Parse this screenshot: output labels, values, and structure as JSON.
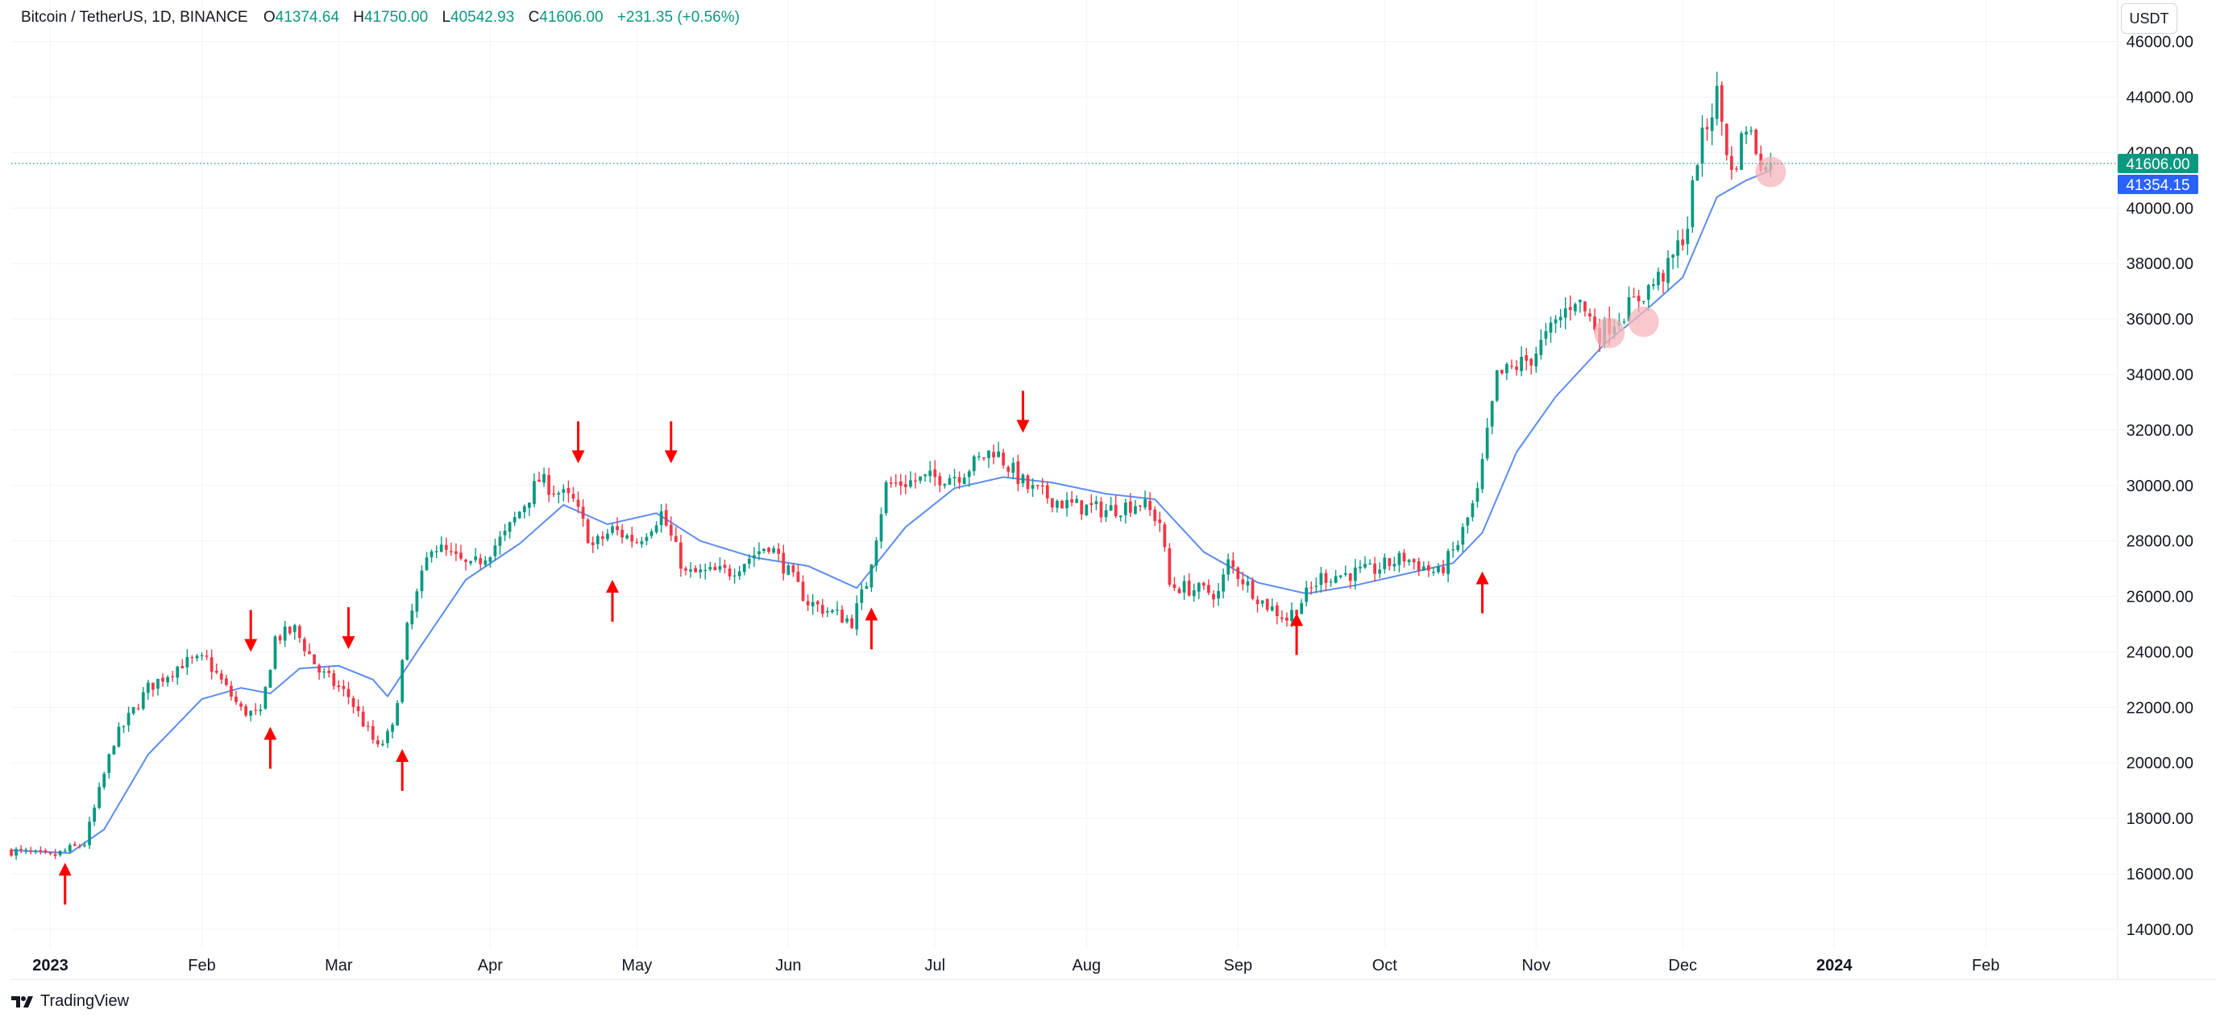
{
  "header": {
    "symbol": "Bitcoin / TetherUS, 1D, BINANCE",
    "o_label": "O",
    "o_value": "41374.64",
    "h_label": "H",
    "h_value": "41750.00",
    "l_label": "L",
    "l_value": "40542.93",
    "c_label": "C",
    "c_value": "41606.00",
    "change": "+231.35 (+0.56%)"
  },
  "currency_button": "USDT",
  "branding": "TradingView",
  "colors": {
    "up": "#089981",
    "down": "#f23645",
    "ma": "#5b8def",
    "last_price_bg": "#089981",
    "ma_label_bg": "#2962ff",
    "arrow": "#ff0000",
    "highlight": "#f7b6bb",
    "grid": "#f0f3fa",
    "axis_text": "#131722"
  },
  "chart_data": {
    "type": "candlestick",
    "title": "Bitcoin / TetherUS, 1D, BINANCE",
    "x_range": [
      "2022-12-24",
      "2024-02-28"
    ],
    "ylim": [
      13300,
      47500
    ],
    "y_ticks": [
      14000,
      16000,
      18000,
      20000,
      22000,
      24000,
      26000,
      28000,
      30000,
      32000,
      34000,
      36000,
      38000,
      40000,
      42000,
      44000,
      46000
    ],
    "y_tick_labels": [
      "14000.00",
      "16000.00",
      "18000.00",
      "20000.00",
      "22000.00",
      "24000.00",
      "26000.00",
      "28000.00",
      "30000.00",
      "32000.00",
      "34000.00",
      "36000.00",
      "38000.00",
      "40000.00",
      "42000.00",
      "44000.00",
      "46000.00"
    ],
    "x_ticks": [
      {
        "label": "2023",
        "date": "2023-01-01",
        "bold": true
      },
      {
        "label": "Feb",
        "date": "2023-02-01"
      },
      {
        "label": "Mar",
        "date": "2023-03-01"
      },
      {
        "label": "Apr",
        "date": "2023-04-01"
      },
      {
        "label": "May",
        "date": "2023-05-01"
      },
      {
        "label": "Jun",
        "date": "2023-06-01"
      },
      {
        "label": "Jul",
        "date": "2023-07-01"
      },
      {
        "label": "Aug",
        "date": "2023-08-01"
      },
      {
        "label": "Sep",
        "date": "2023-09-01"
      },
      {
        "label": "Oct",
        "date": "2023-10-01"
      },
      {
        "label": "Nov",
        "date": "2023-11-01"
      },
      {
        "label": "Dec",
        "date": "2023-12-01"
      },
      {
        "label": "2024",
        "date": "2024-01-01",
        "bold": true
      },
      {
        "label": "Feb",
        "date": "2024-02-01"
      }
    ],
    "grid": true,
    "last_price": {
      "value": 41606.0,
      "label": "41606.00"
    },
    "ma_value": {
      "value": 41354.15,
      "label": "41354.15"
    },
    "price_path": [
      {
        "date": "2022-12-24",
        "close": 16840
      },
      {
        "date": "2023-01-01",
        "close": 16600
      },
      {
        "date": "2023-01-08",
        "close": 17100
      },
      {
        "date": "2023-01-14",
        "close": 20800
      },
      {
        "date": "2023-01-21",
        "close": 22700
      },
      {
        "date": "2023-01-28",
        "close": 23600
      },
      {
        "date": "2023-02-02",
        "close": 23700
      },
      {
        "date": "2023-02-09",
        "close": 21900
      },
      {
        "date": "2023-02-13",
        "close": 21700
      },
      {
        "date": "2023-02-16",
        "close": 24500
      },
      {
        "date": "2023-02-20",
        "close": 24800
      },
      {
        "date": "2023-02-25",
        "close": 23300
      },
      {
        "date": "2023-03-03",
        "close": 22400
      },
      {
        "date": "2023-03-09",
        "close": 20500
      },
      {
        "date": "2023-03-12",
        "close": 21200
      },
      {
        "date": "2023-03-15",
        "close": 24800
      },
      {
        "date": "2023-03-20",
        "close": 27900
      },
      {
        "date": "2023-03-28",
        "close": 27000
      },
      {
        "date": "2023-04-04",
        "close": 28200
      },
      {
        "date": "2023-04-11",
        "close": 30200
      },
      {
        "date": "2023-04-18",
        "close": 29400
      },
      {
        "date": "2023-04-22",
        "close": 27800
      },
      {
        "date": "2023-04-26",
        "close": 28400
      },
      {
        "date": "2023-05-01",
        "close": 28000
      },
      {
        "date": "2023-05-06",
        "close": 29000
      },
      {
        "date": "2023-05-11",
        "close": 26800
      },
      {
        "date": "2023-05-20",
        "close": 26900
      },
      {
        "date": "2023-05-28",
        "close": 27900
      },
      {
        "date": "2023-06-05",
        "close": 25800
      },
      {
        "date": "2023-06-14",
        "close": 25100
      },
      {
        "date": "2023-06-17",
        "close": 26500
      },
      {
        "date": "2023-06-21",
        "close": 30000
      },
      {
        "date": "2023-06-28",
        "close": 30200
      },
      {
        "date": "2023-07-06",
        "close": 30400
      },
      {
        "date": "2023-07-13",
        "close": 31300
      },
      {
        "date": "2023-07-20",
        "close": 29900
      },
      {
        "date": "2023-07-28",
        "close": 29300
      },
      {
        "date": "2023-08-05",
        "close": 29100
      },
      {
        "date": "2023-08-12",
        "close": 29400
      },
      {
        "date": "2023-08-16",
        "close": 28700
      },
      {
        "date": "2023-08-18",
        "close": 26400
      },
      {
        "date": "2023-08-28",
        "close": 26100
      },
      {
        "date": "2023-08-30",
        "close": 27200
      },
      {
        "date": "2023-09-06",
        "close": 25800
      },
      {
        "date": "2023-09-11",
        "close": 25200
      },
      {
        "date": "2023-09-18",
        "close": 26700
      },
      {
        "date": "2023-09-28",
        "close": 26900
      },
      {
        "date": "2023-10-05",
        "close": 27400
      },
      {
        "date": "2023-10-12",
        "close": 26800
      },
      {
        "date": "2023-10-16",
        "close": 27900
      },
      {
        "date": "2023-10-20",
        "close": 29700
      },
      {
        "date": "2023-10-24",
        "close": 33900
      },
      {
        "date": "2023-10-31",
        "close": 34600
      },
      {
        "date": "2023-11-09",
        "close": 36800
      },
      {
        "date": "2023-11-14",
        "close": 35500
      },
      {
        "date": "2023-11-21",
        "close": 36600
      },
      {
        "date": "2023-11-28",
        "close": 37800
      },
      {
        "date": "2023-12-02",
        "close": 39400
      },
      {
        "date": "2023-12-04",
        "close": 41900
      },
      {
        "date": "2023-12-08",
        "close": 44100
      },
      {
        "date": "2023-12-11",
        "close": 41200
      },
      {
        "date": "2023-12-14",
        "close": 43000
      },
      {
        "date": "2023-12-18",
        "close": 41370
      },
      {
        "date": "2023-12-19",
        "close": 41606
      }
    ],
    "ma_series": [
      {
        "date": "2022-12-24",
        "value": 16850
      },
      {
        "date": "2023-01-05",
        "value": 16750
      },
      {
        "date": "2023-01-12",
        "value": 17600
      },
      {
        "date": "2023-01-21",
        "value": 20300
      },
      {
        "date": "2023-02-01",
        "value": 22300
      },
      {
        "date": "2023-02-09",
        "value": 22700
      },
      {
        "date": "2023-02-15",
        "value": 22500
      },
      {
        "date": "2023-02-21",
        "value": 23400
      },
      {
        "date": "2023-03-01",
        "value": 23500
      },
      {
        "date": "2023-03-08",
        "value": 23000
      },
      {
        "date": "2023-03-11",
        "value": 22400
      },
      {
        "date": "2023-03-17",
        "value": 24000
      },
      {
        "date": "2023-03-27",
        "value": 26600
      },
      {
        "date": "2023-04-07",
        "value": 27900
      },
      {
        "date": "2023-04-16",
        "value": 29300
      },
      {
        "date": "2023-04-25",
        "value": 28600
      },
      {
        "date": "2023-05-05",
        "value": 29000
      },
      {
        "date": "2023-05-14",
        "value": 28000
      },
      {
        "date": "2023-05-25",
        "value": 27400
      },
      {
        "date": "2023-06-05",
        "value": 27100
      },
      {
        "date": "2023-06-15",
        "value": 26300
      },
      {
        "date": "2023-06-25",
        "value": 28500
      },
      {
        "date": "2023-07-05",
        "value": 29900
      },
      {
        "date": "2023-07-15",
        "value": 30300
      },
      {
        "date": "2023-07-25",
        "value": 30100
      },
      {
        "date": "2023-08-05",
        "value": 29700
      },
      {
        "date": "2023-08-15",
        "value": 29500
      },
      {
        "date": "2023-08-25",
        "value": 27600
      },
      {
        "date": "2023-09-05",
        "value": 26500
      },
      {
        "date": "2023-09-15",
        "value": 26100
      },
      {
        "date": "2023-09-25",
        "value": 26400
      },
      {
        "date": "2023-10-05",
        "value": 26800
      },
      {
        "date": "2023-10-15",
        "value": 27200
      },
      {
        "date": "2023-10-21",
        "value": 28300
      },
      {
        "date": "2023-10-28",
        "value": 31200
      },
      {
        "date": "2023-11-05",
        "value": 33200
      },
      {
        "date": "2023-11-15",
        "value": 35100
      },
      {
        "date": "2023-11-24",
        "value": 36400
      },
      {
        "date": "2023-12-01",
        "value": 37500
      },
      {
        "date": "2023-12-08",
        "value": 40400
      },
      {
        "date": "2023-12-14",
        "value": 41000
      },
      {
        "date": "2023-12-19",
        "value": 41354
      }
    ],
    "arrows": [
      {
        "date": "2023-01-04",
        "price": 16400,
        "direction": "up"
      },
      {
        "date": "2023-02-11",
        "price": 24000,
        "direction": "down"
      },
      {
        "date": "2023-02-15",
        "price": 21300,
        "direction": "up"
      },
      {
        "date": "2023-03-03",
        "price": 24100,
        "direction": "down"
      },
      {
        "date": "2023-03-14",
        "price": 20500,
        "direction": "up"
      },
      {
        "date": "2023-04-19",
        "price": 30800,
        "direction": "down"
      },
      {
        "date": "2023-04-26",
        "price": 26600,
        "direction": "up"
      },
      {
        "date": "2023-05-08",
        "price": 30800,
        "direction": "down"
      },
      {
        "date": "2023-06-18",
        "price": 25600,
        "direction": "up"
      },
      {
        "date": "2023-07-19",
        "price": 31900,
        "direction": "down"
      },
      {
        "date": "2023-09-13",
        "price": 25400,
        "direction": "up"
      },
      {
        "date": "2023-10-21",
        "price": 26900,
        "direction": "up"
      }
    ],
    "highlight_circles": [
      {
        "date": "2023-11-16",
        "price": 35500
      },
      {
        "date": "2023-11-23",
        "price": 35900
      },
      {
        "date": "2023-12-19",
        "price": 41300
      }
    ]
  }
}
